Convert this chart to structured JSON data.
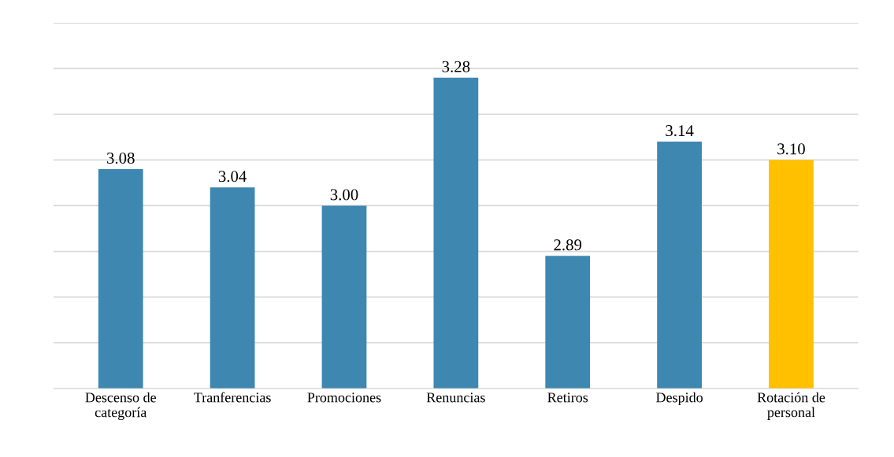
{
  "chart_data": {
    "type": "bar",
    "categories": [
      "Descenso de\ncategoría",
      "Tranferencias",
      "Promociones",
      "Renuncias",
      "Retiros",
      "Despido",
      "Rotación de\npersonal"
    ],
    "values": [
      3.08,
      3.04,
      3.0,
      3.28,
      2.89,
      3.14,
      3.1
    ],
    "colors": [
      "#3e87b1",
      "#3e87b1",
      "#3e87b1",
      "#3e87b1",
      "#3e87b1",
      "#3e87b1",
      "#ffc000"
    ],
    "value_labels": [
      "3.08",
      "3.04",
      "3.00",
      "3.28",
      "2.89",
      "3.14",
      "3.10"
    ],
    "ylim": [
      2.6,
      3.4
    ],
    "yticks": [
      {
        "value": 2.6,
        "label": null
      },
      {
        "value": 2.7,
        "label": null
      },
      {
        "value": 2.8,
        "label": null
      },
      {
        "value": 2.9,
        "label": null
      },
      {
        "value": 3.0,
        "label": null
      },
      {
        "value": 3.1,
        "label": null
      },
      {
        "value": 3.2,
        "label": null
      },
      {
        "value": 3.3,
        "label": null
      },
      {
        "value": 3.4,
        "label": null
      }
    ],
    "tick_labels": "x",
    "grid": "y"
  }
}
